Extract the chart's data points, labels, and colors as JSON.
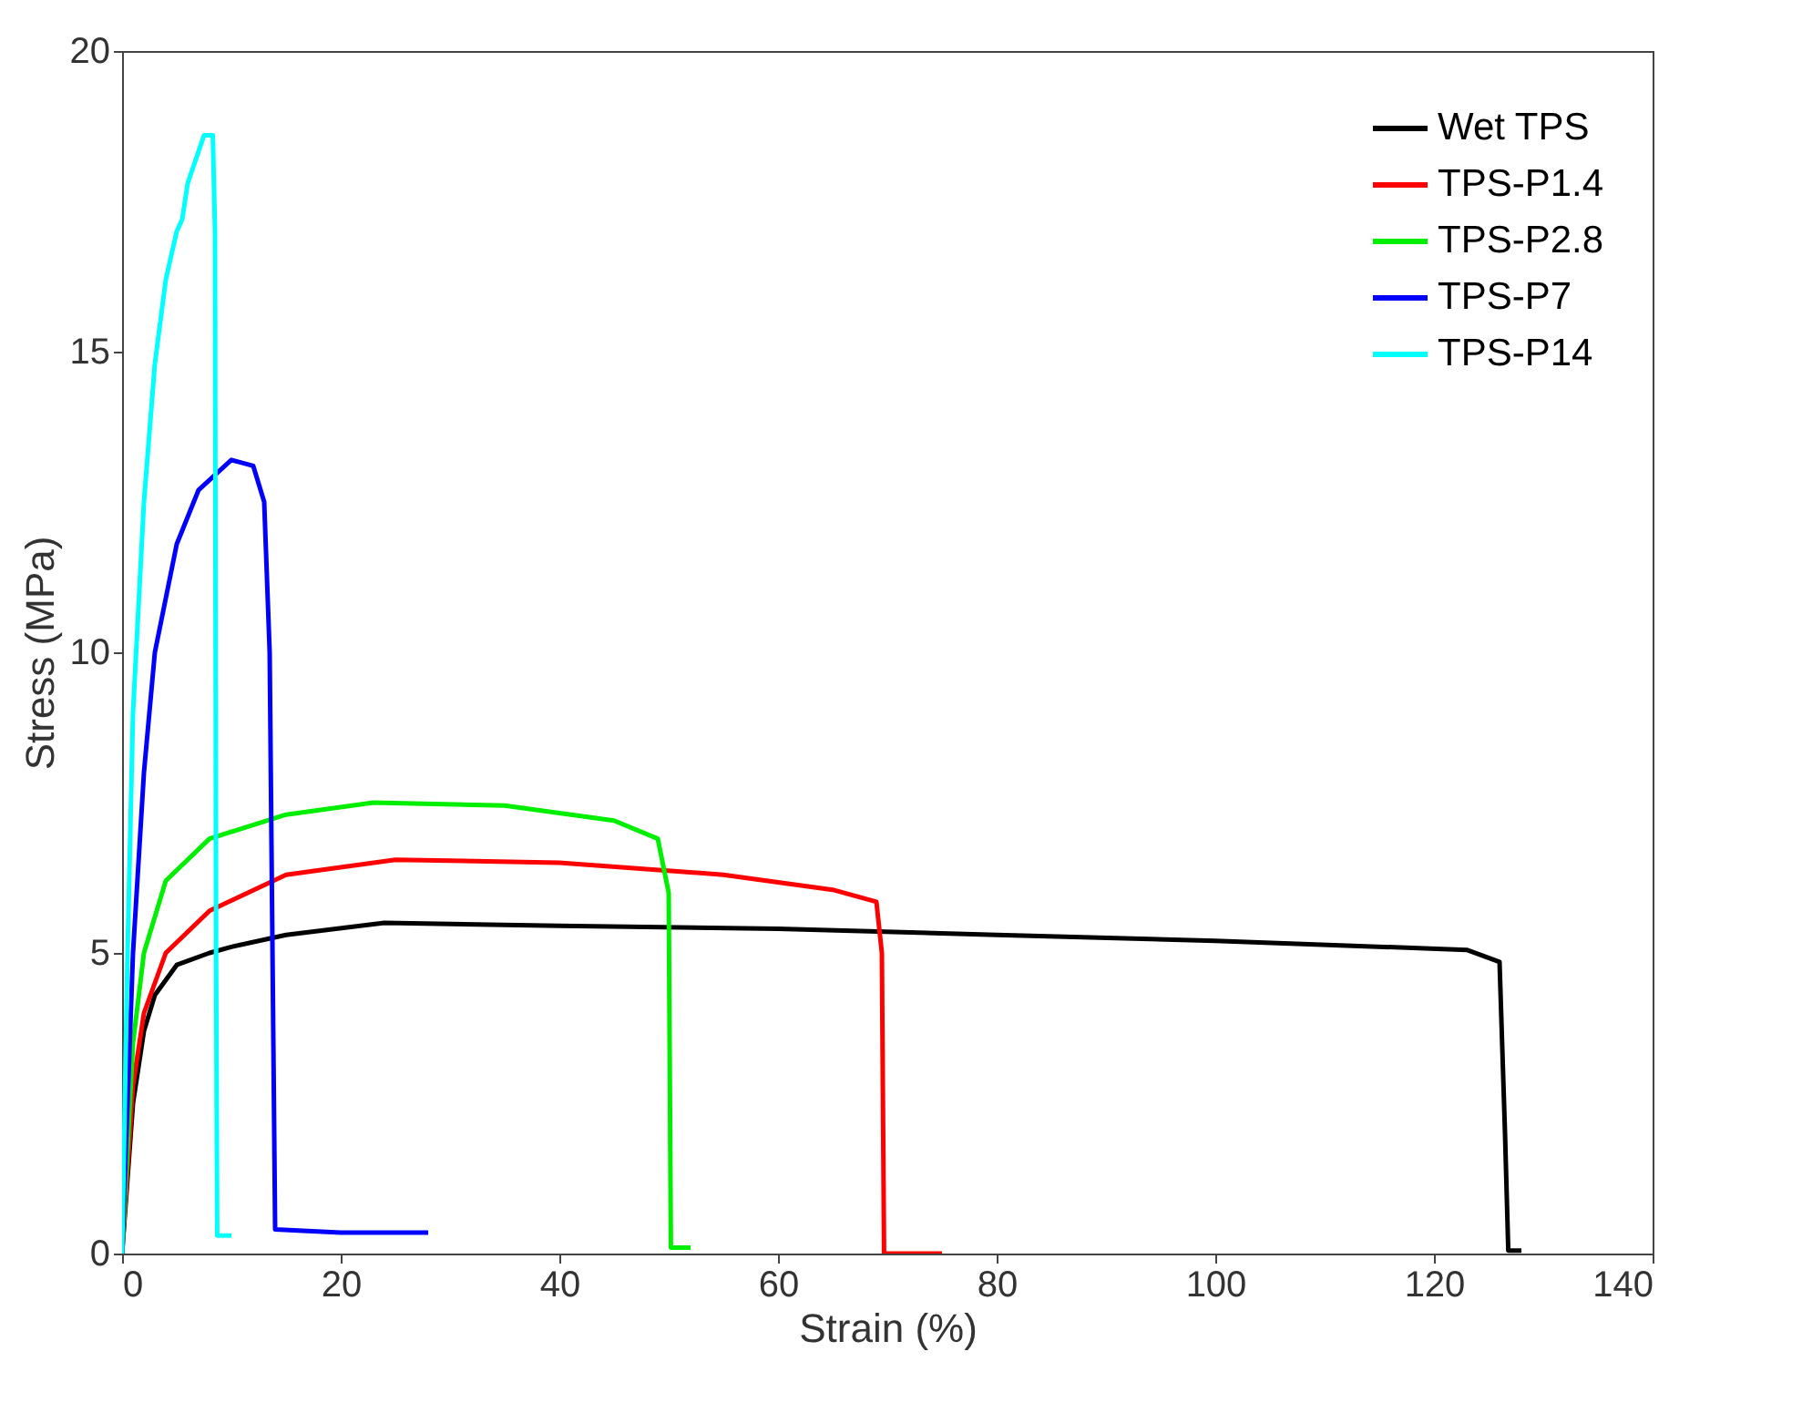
{
  "chart_data": {
    "type": "line",
    "xlabel": "Strain (%)",
    "ylabel": "Stress (MPa)",
    "xlim": [
      0,
      140
    ],
    "xticks": [
      0,
      20,
      40,
      60,
      80,
      100,
      120,
      140
    ],
    "ylim": [
      0,
      20
    ],
    "yticks": [
      0,
      5,
      10,
      15,
      20
    ],
    "grid": false,
    "legend": "top right",
    "line_style": "solid",
    "series": [
      {
        "name": "Wet TPS",
        "color": "#000000",
        "x": [
          0,
          1,
          2,
          3,
          5,
          8,
          10,
          15,
          24,
          40,
          60,
          80,
          100,
          123,
          126,
          126.5,
          126.8,
          128
        ],
        "values": [
          0,
          2.5,
          3.7,
          4.3,
          4.8,
          5.0,
          5.1,
          5.3,
          5.5,
          5.45,
          5.4,
          5.3,
          5.2,
          5.05,
          4.85,
          2,
          0.05,
          0.05
        ]
      },
      {
        "name": "TPS-P1.4",
        "color": "#ff0000",
        "x": [
          0,
          1,
          2,
          4,
          8,
          15,
          25,
          40,
          55,
          65,
          69,
          69.5,
          69.7,
          75
        ],
        "values": [
          0,
          2.8,
          4,
          5,
          5.7,
          6.3,
          6.55,
          6.5,
          6.3,
          6.05,
          5.85,
          5,
          0,
          0
        ]
      },
      {
        "name": "TPS-P2.8",
        "color": "#00ee00",
        "x": [
          0,
          1,
          2,
          4,
          8,
          15,
          23,
          35,
          45,
          49,
          50,
          50.2,
          52
        ],
        "values": [
          0,
          3.5,
          5,
          6.2,
          6.9,
          7.3,
          7.5,
          7.45,
          7.2,
          6.9,
          6,
          0.1,
          0.1
        ]
      },
      {
        "name": "TPS-P7",
        "color": "#0000ff",
        "x": [
          0,
          1,
          2,
          3,
          5,
          7,
          10,
          12,
          13,
          13.5,
          14,
          20,
          28
        ],
        "values": [
          0,
          5,
          8,
          10,
          11.8,
          12.7,
          13.2,
          13.1,
          12.5,
          10,
          0.4,
          0.35,
          0.35
        ]
      },
      {
        "name": "TPS-P14",
        "color": "#00ffff",
        "x": [
          0,
          0.5,
          1,
          2,
          3,
          4,
          5,
          5.5,
          6,
          7.5,
          8.3,
          8.5,
          8.6,
          8.7,
          10
        ],
        "values": [
          0,
          5,
          9,
          12.5,
          14.8,
          16.2,
          17,
          17.2,
          17.8,
          18.6,
          18.6,
          17,
          5,
          0.3,
          0.3
        ]
      }
    ]
  }
}
